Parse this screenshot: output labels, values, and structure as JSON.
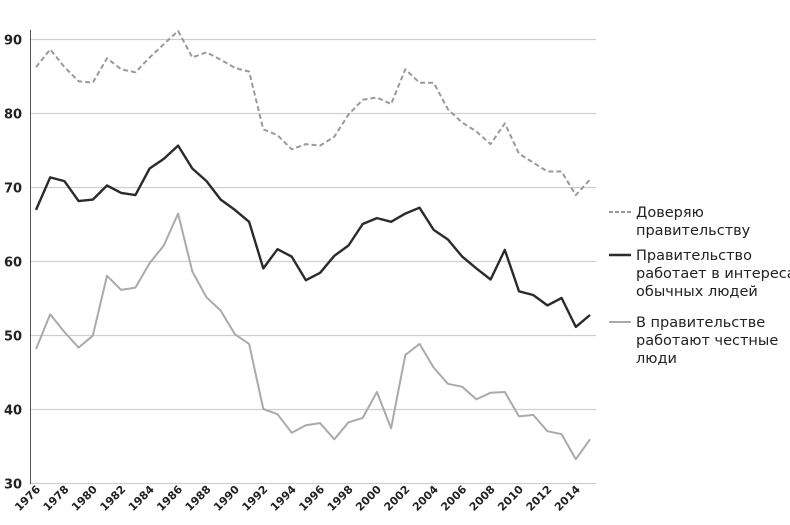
{
  "chart_data": {
    "type": "line",
    "title": "",
    "xlabel": "",
    "ylabel": "",
    "xlim": [
      1976,
      2015
    ],
    "ylim": [
      30,
      90
    ],
    "yticks": [
      30,
      40,
      50,
      60,
      70,
      80,
      90
    ],
    "xticks": [
      1976,
      1978,
      1980,
      1982,
      1984,
      1986,
      1988,
      1990,
      1992,
      1994,
      1996,
      1998,
      2000,
      2002,
      2004,
      2006,
      2008,
      2010,
      2012,
      2014
    ],
    "grid": "horizontal",
    "legend_position": "right",
    "x": [
      1976,
      1977,
      1978,
      1979,
      1980,
      1981,
      1982,
      1983,
      1984,
      1985,
      1986,
      1987,
      1988,
      1989,
      1990,
      1991,
      1992,
      1993,
      1994,
      1995,
      1996,
      1997,
      1998,
      1999,
      2000,
      2001,
      2002,
      2003,
      2004,
      2005,
      2006,
      2007,
      2008,
      2009,
      2010,
      2011,
      2012,
      2013,
      2014,
      2015
    ],
    "series": [
      {
        "name": "Доверяю правительству",
        "legend_lines": [
          "Доверяю",
          "правительству"
        ],
        "style": "dashed",
        "color": "#9a9a9a",
        "values": [
          86.2,
          88.6,
          86.2,
          84.3,
          84.1,
          87.4,
          85.9,
          85.5,
          87.5,
          89.3,
          91.1,
          87.5,
          88.2,
          87.2,
          86.1,
          85.6,
          77.8,
          77.0,
          75.1,
          75.8,
          75.6,
          76.8,
          79.8,
          81.8,
          82.1,
          81.2,
          85.9,
          84.1,
          84.1,
          80.5,
          78.7,
          77.5,
          75.8,
          78.6,
          74.5,
          73.3,
          72.1,
          72.1,
          68.9,
          71.0
        ]
      },
      {
        "name": "Правительство работает в интересах обычных людей",
        "legend_lines": [
          "Правительство",
          "работает в интересах",
          "обычных людей"
        ],
        "style": "solid",
        "color": "#2b2b2b",
        "values": [
          66.9,
          71.3,
          70.8,
          68.1,
          68.3,
          70.2,
          69.2,
          68.9,
          72.5,
          73.8,
          75.6,
          72.5,
          70.8,
          68.3,
          66.9,
          65.3,
          59.0,
          61.6,
          60.6,
          57.4,
          58.4,
          60.7,
          62.1,
          65.0,
          65.8,
          65.3,
          66.4,
          67.2,
          64.2,
          62.9,
          60.6,
          59.0,
          57.5,
          61.5,
          55.9,
          55.4,
          54.0,
          55.0,
          51.1,
          52.7
        ]
      },
      {
        "name": "В правительстве работают честные люди",
        "legend_lines": [
          "В правительстве",
          "работают честные",
          "люди"
        ],
        "style": "solid",
        "color": "#aaaaaa",
        "values": [
          48.1,
          52.8,
          50.4,
          48.3,
          49.9,
          58.0,
          56.1,
          56.4,
          59.7,
          62.1,
          66.4,
          58.6,
          55.1,
          53.3,
          50.1,
          48.8,
          40.0,
          39.3,
          36.8,
          37.8,
          38.1,
          35.9,
          38.2,
          38.8,
          42.3,
          37.4,
          47.3,
          48.8,
          45.6,
          43.4,
          43.0,
          41.3,
          42.2,
          42.3,
          39.0,
          39.2,
          37.0,
          36.6,
          33.2,
          35.9
        ]
      }
    ]
  }
}
